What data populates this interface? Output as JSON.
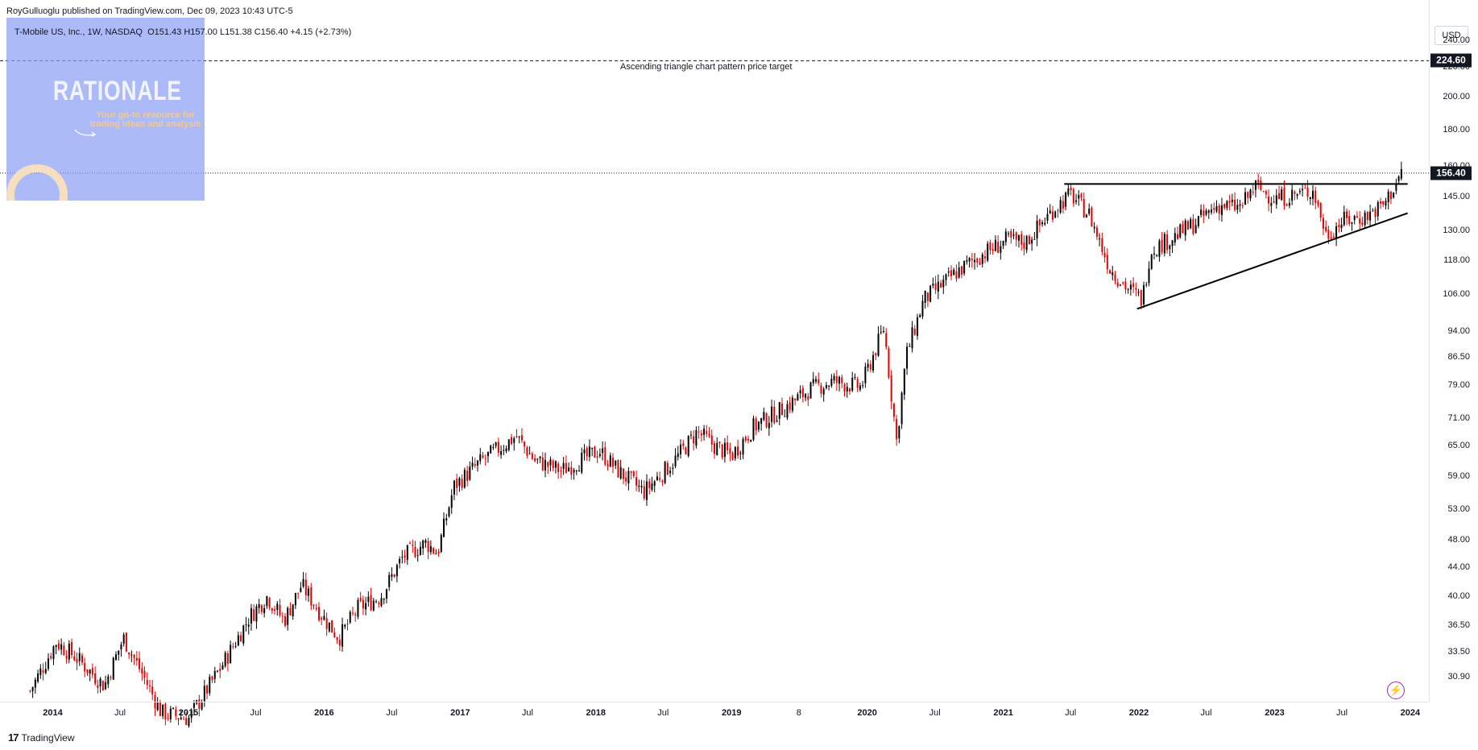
{
  "header": {
    "published": "RoyGulluoglu published on TradingView.com, Dec 09, 2023 10:43 UTC-5",
    "symbol": "T-Mobile US, Inc., 1W, NASDAQ",
    "ohlc": "O151.43  H157.00  L151.38  C156.40  +4.15 (+2.73%)"
  },
  "branding": {
    "title": "RATIONALE",
    "subtitle": "Your go-to resource for trading ideas and analysis"
  },
  "price_axis": {
    "currency": "USD",
    "current_price_label": "156.40",
    "target_label": "224.60"
  },
  "annotations": {
    "target_text": "Ascending triangle chart pattern price target"
  },
  "footer": {
    "brand": "TradingView",
    "logo": "tradingview-logo-icon"
  },
  "colors": {
    "up": "#000000",
    "down": "#e60000",
    "badge_bg": "#131722",
    "target_badge_bg": "#131722"
  },
  "chart_data": {
    "type": "candlestick",
    "interval": "1W",
    "scale": "log",
    "ylim": [
      28.5,
      258
    ],
    "yticks": [
      "240.00",
      "220.00",
      "200.00",
      "180.00",
      "160.00",
      "145.00",
      "130.00",
      "118.00",
      "106.00",
      "94.00",
      "86.50",
      "79.00",
      "71.00",
      "65.00",
      "59.00",
      "53.00",
      "48.00",
      "44.00",
      "40.00",
      "36.50",
      "33.50",
      "30.90"
    ],
    "ytick_values": [
      240,
      220,
      200,
      180,
      160,
      145,
      130,
      118,
      106,
      94,
      86.5,
      79,
      71,
      65,
      59,
      53,
      48,
      44,
      40,
      36.5,
      33.5,
      30.9
    ],
    "xticks": [
      "2014",
      "Jul",
      "2015",
      "Jul",
      "2016",
      "Jul",
      "2017",
      "Jul",
      "2018",
      "Jul",
      "2019",
      "8",
      "2020",
      "Jul",
      "2021",
      "Jul",
      "2022",
      "Jul",
      "2023",
      "Jul",
      "2024"
    ],
    "xtick_dates": [
      "2014-01-01",
      "2014-07-01",
      "2015-01-01",
      "2015-07-01",
      "2016-01-01",
      "2016-07-01",
      "2017-01-01",
      "2017-07-01",
      "2018-01-01",
      "2018-07-01",
      "2019-01-01",
      "2019-07-01",
      "2020-01-01",
      "2020-07-01",
      "2021-01-01",
      "2021-07-01",
      "2022-01-01",
      "2022-07-01",
      "2023-01-01",
      "2023-07-01",
      "2024-01-01"
    ],
    "xrange": [
      "2013-08-12",
      "2024-02-20"
    ],
    "price_path": [
      [
        "2013-11-01",
        29.5
      ],
      [
        "2014-01-10",
        34.5
      ],
      [
        "2014-03-01",
        33.0
      ],
      [
        "2014-05-20",
        30.0
      ],
      [
        "2014-07-10",
        35.0
      ],
      [
        "2014-09-01",
        31.0
      ],
      [
        "2014-10-20",
        27.5
      ],
      [
        "2015-01-02",
        27.0
      ],
      [
        "2015-04-01",
        32.0
      ],
      [
        "2015-06-15",
        37.5
      ],
      [
        "2015-08-01",
        40.0
      ],
      [
        "2015-09-15",
        37.0
      ],
      [
        "2015-11-01",
        41.5
      ],
      [
        "2016-01-05",
        37.0
      ],
      [
        "2016-02-10",
        35.0
      ],
      [
        "2016-04-01",
        38.5
      ],
      [
        "2016-06-01",
        40.0
      ],
      [
        "2016-08-01",
        45.5
      ],
      [
        "2016-10-01",
        47.5
      ],
      [
        "2016-11-01",
        46.0
      ],
      [
        "2016-12-15",
        57.0
      ],
      [
        "2017-03-01",
        62.0
      ],
      [
        "2017-06-01",
        67.0
      ],
      [
        "2017-07-20",
        62.0
      ],
      [
        "2017-10-01",
        60.0
      ],
      [
        "2018-01-10",
        64.0
      ],
      [
        "2018-03-01",
        60.0
      ],
      [
        "2018-05-10",
        56.0
      ],
      [
        "2018-08-01",
        62.0
      ],
      [
        "2018-10-01",
        68.0
      ],
      [
        "2018-11-15",
        65.0
      ],
      [
        "2019-01-01",
        63.0
      ],
      [
        "2019-03-01",
        69.0
      ],
      [
        "2019-06-01",
        74.0
      ],
      [
        "2019-08-01",
        78.0
      ],
      [
        "2019-10-01",
        80.0
      ],
      [
        "2019-12-15",
        78.5
      ],
      [
        "2020-02-15",
        95.0
      ],
      [
        "2020-03-20",
        66.0
      ],
      [
        "2020-04-15",
        87.0
      ],
      [
        "2020-06-01",
        104.0
      ],
      [
        "2020-09-01",
        114.0
      ],
      [
        "2020-11-01",
        120.0
      ],
      [
        "2021-01-10",
        126.0
      ],
      [
        "2021-03-01",
        125.0
      ],
      [
        "2021-05-20",
        140.0
      ],
      [
        "2021-07-01",
        146.0
      ],
      [
        "2021-08-20",
        137.0
      ],
      [
        "2021-10-15",
        115.0
      ],
      [
        "2021-12-01",
        108.0
      ],
      [
        "2022-01-10",
        104.0
      ],
      [
        "2022-02-01",
        122.0
      ],
      [
        "2022-04-01",
        127.0
      ],
      [
        "2022-06-01",
        133.0
      ],
      [
        "2022-08-01",
        141.0
      ],
      [
        "2022-10-01",
        140.0
      ],
      [
        "2022-11-10",
        150.0
      ],
      [
        "2023-01-01",
        144.0
      ],
      [
        "2023-03-01",
        146.0
      ],
      [
        "2023-04-15",
        148.0
      ],
      [
        "2023-05-20",
        128.0
      ],
      [
        "2023-07-01",
        134.0
      ],
      [
        "2023-09-01",
        136.0
      ],
      [
        "2023-10-20",
        141.0
      ],
      [
        "2023-11-20",
        150.0
      ],
      [
        "2023-12-08",
        156.4
      ]
    ],
    "lines": [
      {
        "name": "resistance",
        "from": [
          "2021-06-14",
          151.0
        ],
        "to": [
          "2023-12-25",
          151.0
        ]
      },
      {
        "name": "support",
        "from": [
          "2021-12-27",
          101.0
        ],
        "to": [
          "2023-12-25",
          137.5
        ]
      },
      {
        "name": "price-target",
        "from": [
          "2013-08-12",
          224.6
        ],
        "to": [
          "2024-02-20",
          224.6
        ]
      },
      {
        "name": "last-price",
        "from": [
          "2013-08-12",
          156.4
        ],
        "to": [
          "2024-02-20",
          156.4
        ]
      }
    ]
  }
}
